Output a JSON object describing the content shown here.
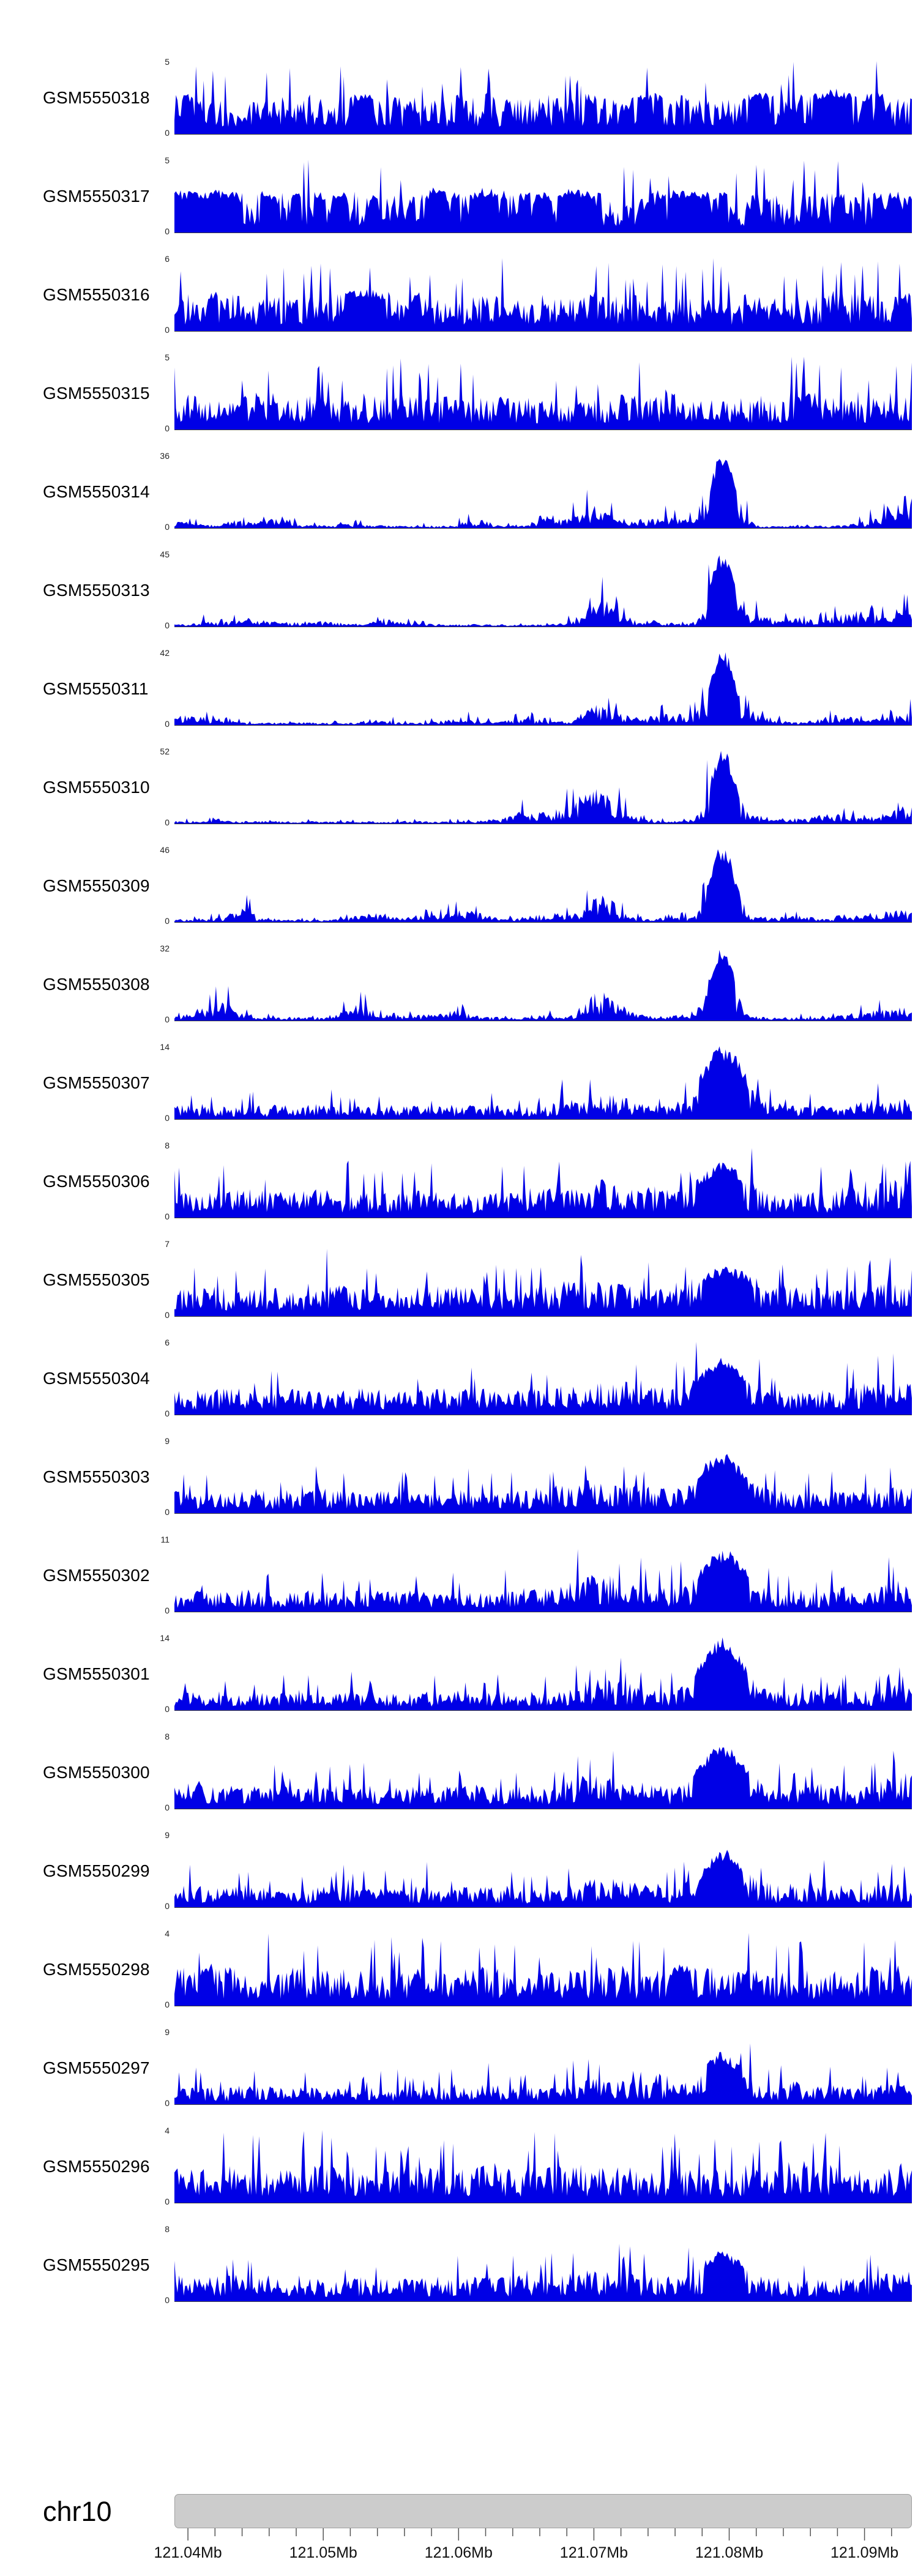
{
  "colors": {
    "track_fill": "#0000E6",
    "baseline": "#3a3a3a",
    "ruler_bar": "#cccccc",
    "ruler_border": "#9e9e9e",
    "tick": "#555555",
    "axis_text": "#222222"
  },
  "chart_data": {
    "type": "area",
    "description": "Stacked genome-browser coverage tracks (read-depth signal) for 23 GSM samples over chr10:121.04-121.09Mb; samples GSM5550314-GSM5550308 show a sharp shared peak near 121.078Mb",
    "y_min": 0,
    "x_axis": {
      "chromosome": "chr10",
      "unit": "Mb",
      "start": 121.039,
      "end": 121.0935,
      "tick_values": [
        121.04,
        121.05,
        121.06,
        121.07,
        121.08,
        121.09
      ],
      "tick_labels": [
        "121.04Mb",
        "121.05Mb",
        "121.06Mb",
        "121.07Mb",
        "121.08Mb",
        "121.09Mb"
      ],
      "minor_tick_step": 0.002
    },
    "main_peak_mb": 121.0795,
    "secondary_peak_mb": 121.0705,
    "tracks": [
      {
        "name": "GSM5550318",
        "ymax": 5,
        "profile": "dense",
        "seed": 11,
        "base": 0.52,
        "main": 0,
        "sec": 0,
        "edge": 0
      },
      {
        "name": "GSM5550317",
        "ymax": 5,
        "profile": "dense",
        "seed": 22,
        "base": 0.55,
        "main": 0,
        "sec": 0,
        "edge": 0
      },
      {
        "name": "GSM5550316",
        "ymax": 6,
        "profile": "dense",
        "seed": 33,
        "base": 0.5,
        "main": 0,
        "sec": 0,
        "edge": 0
      },
      {
        "name": "GSM5550315",
        "ymax": 5,
        "profile": "dense",
        "seed": 44,
        "base": 0.48,
        "main": 0,
        "sec": 0,
        "edge": 0
      },
      {
        "name": "GSM5550314",
        "ymax": 36,
        "profile": "peaked",
        "seed": 55,
        "base": 0.05,
        "main": 1.0,
        "sec": 0.2,
        "edge": 0.45
      },
      {
        "name": "GSM5550313",
        "ymax": 45,
        "profile": "peaked",
        "seed": 66,
        "base": 0.05,
        "main": 1.0,
        "sec": 0.3,
        "edge": 0.12
      },
      {
        "name": "GSM5550311",
        "ymax": 42,
        "profile": "peaked",
        "seed": 77,
        "base": 0.05,
        "main": 1.0,
        "sec": 0.26,
        "edge": 0.15
      },
      {
        "name": "GSM5550310",
        "ymax": 52,
        "profile": "peaked",
        "seed": 88,
        "base": 0.05,
        "main": 1.0,
        "sec": 0.3,
        "edge": 0.1
      },
      {
        "name": "GSM5550309",
        "ymax": 46,
        "profile": "peaked",
        "seed": 99,
        "base": 0.06,
        "main": 1.0,
        "sec": 0.3,
        "edge": 0.12
      },
      {
        "name": "GSM5550308",
        "ymax": 32,
        "profile": "peaked",
        "seed": 110,
        "base": 0.07,
        "main": 1.0,
        "sec": 0.35,
        "edge": 0.15
      },
      {
        "name": "GSM5550307",
        "ymax": 14,
        "profile": "mixed",
        "seed": 121,
        "base": 0.2,
        "main": 0.85,
        "sec": 0.15,
        "edge": 0.1
      },
      {
        "name": "GSM5550306",
        "ymax": 8,
        "profile": "mixed",
        "seed": 132,
        "base": 0.38,
        "main": 0.35,
        "sec": 0.1,
        "edge": 0.15
      },
      {
        "name": "GSM5550305",
        "ymax": 7,
        "profile": "mixed",
        "seed": 143,
        "base": 0.42,
        "main": 0.3,
        "sec": 0.08,
        "edge": 0.1
      },
      {
        "name": "GSM5550304",
        "ymax": 6,
        "profile": "mixed",
        "seed": 154,
        "base": 0.36,
        "main": 0.45,
        "sec": 0.1,
        "edge": 0.12
      },
      {
        "name": "GSM5550303",
        "ymax": 9,
        "profile": "mixed",
        "seed": 165,
        "base": 0.32,
        "main": 0.5,
        "sec": 0.18,
        "edge": 0.1
      },
      {
        "name": "GSM5550302",
        "ymax": 11,
        "profile": "mixed",
        "seed": 176,
        "base": 0.3,
        "main": 0.6,
        "sec": 0.22,
        "edge": 0.08
      },
      {
        "name": "GSM5550301",
        "ymax": 14,
        "profile": "mixed",
        "seed": 187,
        "base": 0.26,
        "main": 0.8,
        "sec": 0.18,
        "edge": 0.08
      },
      {
        "name": "GSM5550300",
        "ymax": 8,
        "profile": "mixed",
        "seed": 198,
        "base": 0.32,
        "main": 0.55,
        "sec": 0.15,
        "edge": 0.2
      },
      {
        "name": "GSM5550299",
        "ymax": 9,
        "profile": "mixed",
        "seed": 209,
        "base": 0.3,
        "main": 0.5,
        "sec": 0.12,
        "edge": 0.1
      },
      {
        "name": "GSM5550298",
        "ymax": 4,
        "profile": "dense",
        "seed": 220,
        "base": 0.52,
        "main": 0,
        "sec": 0,
        "edge": 0
      },
      {
        "name": "GSM5550297",
        "ymax": 9,
        "profile": "mixed",
        "seed": 231,
        "base": 0.26,
        "main": 0.45,
        "sec": 0.1,
        "edge": 0.05,
        "spiky": 1.6
      },
      {
        "name": "GSM5550296",
        "ymax": 4,
        "profile": "dense",
        "seed": 242,
        "base": 0.5,
        "main": 0,
        "sec": 0,
        "edge": 0
      },
      {
        "name": "GSM5550295",
        "ymax": 8,
        "profile": "mixed",
        "seed": 253,
        "base": 0.34,
        "main": 0.35,
        "sec": 0.1,
        "edge": 0.08
      }
    ]
  }
}
